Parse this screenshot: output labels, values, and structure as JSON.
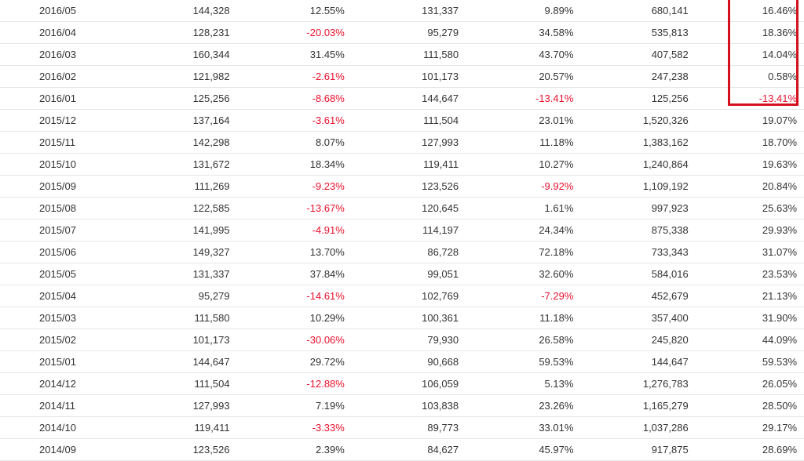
{
  "table": {
    "rows": [
      {
        "period": "2016/05",
        "v1": "144,328",
        "p1": "12.55%",
        "v2": "131,337",
        "p2": "9.89%",
        "v3": "680,141",
        "p3": "16.46%"
      },
      {
        "period": "2016/04",
        "v1": "128,231",
        "p1": "-20.03%",
        "v2": "95,279",
        "p2": "34.58%",
        "v3": "535,813",
        "p3": "18.36%"
      },
      {
        "period": "2016/03",
        "v1": "160,344",
        "p1": "31.45%",
        "v2": "111,580",
        "p2": "43.70%",
        "v3": "407,582",
        "p3": "14.04%"
      },
      {
        "period": "2016/02",
        "v1": "121,982",
        "p1": "-2.61%",
        "v2": "101,173",
        "p2": "20.57%",
        "v3": "247,238",
        "p3": "0.58%"
      },
      {
        "period": "2016/01",
        "v1": "125,256",
        "p1": "-8.68%",
        "v2": "144,647",
        "p2": "-13.41%",
        "v3": "125,256",
        "p3": "-13.41%"
      },
      {
        "period": "2015/12",
        "v1": "137,164",
        "p1": "-3.61%",
        "v2": "111,504",
        "p2": "23.01%",
        "v3": "1,520,326",
        "p3": "19.07%"
      },
      {
        "period": "2015/11",
        "v1": "142,298",
        "p1": "8.07%",
        "v2": "127,993",
        "p2": "11.18%",
        "v3": "1,383,162",
        "p3": "18.70%"
      },
      {
        "period": "2015/10",
        "v1": "131,672",
        "p1": "18.34%",
        "v2": "119,411",
        "p2": "10.27%",
        "v3": "1,240,864",
        "p3": "19.63%"
      },
      {
        "period": "2015/09",
        "v1": "111,269",
        "p1": "-9.23%",
        "v2": "123,526",
        "p2": "-9.92%",
        "v3": "1,109,192",
        "p3": "20.84%"
      },
      {
        "period": "2015/08",
        "v1": "122,585",
        "p1": "-13.67%",
        "v2": "120,645",
        "p2": "1.61%",
        "v3": "997,923",
        "p3": "25.63%"
      },
      {
        "period": "2015/07",
        "v1": "141,995",
        "p1": "-4.91%",
        "v2": "114,197",
        "p2": "24.34%",
        "v3": "875,338",
        "p3": "29.93%"
      },
      {
        "period": "2015/06",
        "v1": "149,327",
        "p1": "13.70%",
        "v2": "86,728",
        "p2": "72.18%",
        "v3": "733,343",
        "p3": "31.07%"
      },
      {
        "period": "2015/05",
        "v1": "131,337",
        "p1": "37.84%",
        "v2": "99,051",
        "p2": "32.60%",
        "v3": "584,016",
        "p3": "23.53%"
      },
      {
        "period": "2015/04",
        "v1": "95,279",
        "p1": "-14.61%",
        "v2": "102,769",
        "p2": "-7.29%",
        "v3": "452,679",
        "p3": "21.13%"
      },
      {
        "period": "2015/03",
        "v1": "111,580",
        "p1": "10.29%",
        "v2": "100,361",
        "p2": "11.18%",
        "v3": "357,400",
        "p3": "31.90%"
      },
      {
        "period": "2015/02",
        "v1": "101,173",
        "p1": "-30.06%",
        "v2": "79,930",
        "p2": "26.58%",
        "v3": "245,820",
        "p3": "44.09%"
      },
      {
        "period": "2015/01",
        "v1": "144,647",
        "p1": "29.72%",
        "v2": "90,668",
        "p2": "59.53%",
        "v3": "144,647",
        "p3": "59.53%"
      },
      {
        "period": "2014/12",
        "v1": "111,504",
        "p1": "-12.88%",
        "v2": "106,059",
        "p2": "5.13%",
        "v3": "1,276,783",
        "p3": "26.05%"
      },
      {
        "period": "2014/11",
        "v1": "127,993",
        "p1": "7.19%",
        "v2": "103,838",
        "p2": "23.26%",
        "v3": "1,165,279",
        "p3": "28.50%"
      },
      {
        "period": "2014/10",
        "v1": "119,411",
        "p1": "-3.33%",
        "v2": "89,773",
        "p2": "33.01%",
        "v3": "1,037,286",
        "p3": "29.17%"
      },
      {
        "period": "2014/09",
        "v1": "123,526",
        "p1": "2.39%",
        "v2": "84,627",
        "p2": "45.97%",
        "v3": "917,875",
        "p3": "28.69%"
      }
    ]
  },
  "colors": {
    "negative": "#e8112d",
    "text": "#333333",
    "highlight_border": "#d4101c"
  }
}
